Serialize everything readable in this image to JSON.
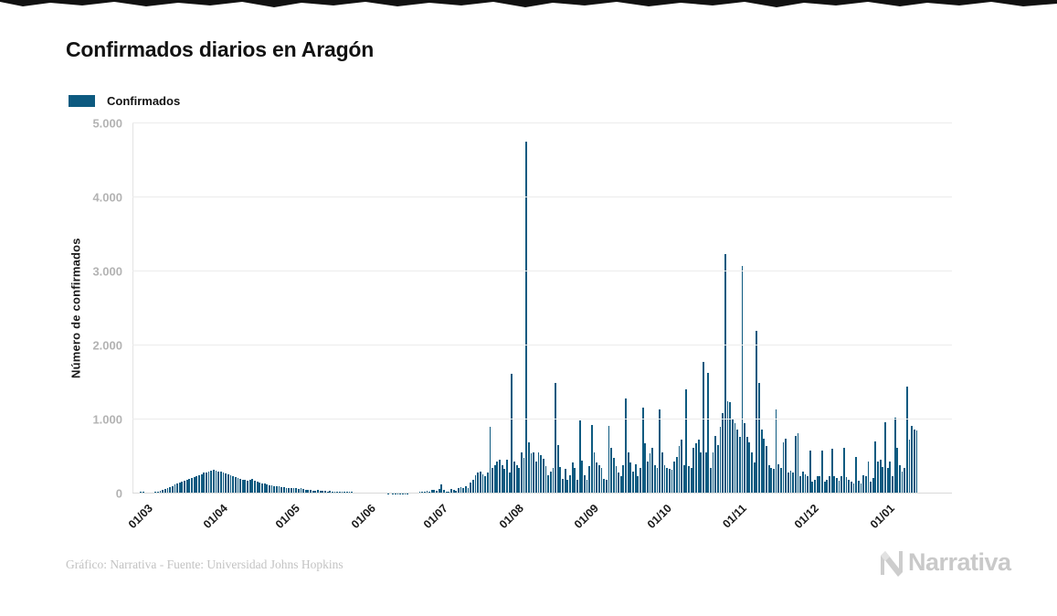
{
  "page": {
    "title": "Confirmados diarios en Aragón"
  },
  "legend": {
    "label": "Confirmados",
    "swatch_color": "#0d5a80"
  },
  "footer": {
    "credit": "Gráfico: Narrativa - Fuente: Universidad Johns Hopkins",
    "brand": "Narrativa"
  },
  "colors": {
    "bar": "#0d5a80",
    "gridline": "#ececec",
    "tick_label_gray": "#b3b3b3",
    "logo_gray": "#c9c9c9"
  },
  "chart_data": {
    "type": "bar",
    "title": "Confirmados diarios en Aragón",
    "series_name": "Confirmados",
    "xlabel": "",
    "ylabel": "Número de confirmados",
    "ylim": [
      0,
      5000
    ],
    "grid": "horizontal",
    "legend_position": "top-left",
    "bar_color": "#0d5a80",
    "y_ticks": [
      {
        "label": "0",
        "value": 0
      },
      {
        "label": "1.000",
        "value": 1000
      },
      {
        "label": "2.000",
        "value": 2000
      },
      {
        "label": "3.000",
        "value": 3000
      },
      {
        "label": "4.000",
        "value": 4000
      },
      {
        "label": "5.000",
        "value": 5000
      }
    ],
    "x_ticks": [
      {
        "label": "01/03",
        "day": 5
      },
      {
        "label": "01/04",
        "day": 36
      },
      {
        "label": "01/05",
        "day": 66
      },
      {
        "label": "01/06",
        "day": 97
      },
      {
        "label": "01/07",
        "day": 127
      },
      {
        "label": "01/08",
        "day": 158
      },
      {
        "label": "01/09",
        "day": 189
      },
      {
        "label": "01/10",
        "day": 219
      },
      {
        "label": "01/11",
        "day": 250
      },
      {
        "label": "01/12",
        "day": 280
      },
      {
        "label": "01/01",
        "day": 311
      }
    ],
    "total_slots": 338,
    "values": [
      10,
      18,
      12,
      22,
      28,
      8,
      10,
      14,
      18,
      25,
      30,
      40,
      50,
      60,
      75,
      90,
      105,
      120,
      135,
      150,
      160,
      175,
      185,
      200,
      210,
      225,
      240,
      250,
      265,
      280,
      290,
      300,
      310,
      320,
      310,
      295,
      300,
      285,
      270,
      260,
      245,
      235,
      220,
      210,
      200,
      190,
      180,
      170,
      185,
      195,
      175,
      160,
      150,
      140,
      130,
      120,
      115,
      110,
      105,
      100,
      95,
      90,
      85,
      80,
      75,
      70,
      80,
      72,
      65,
      75,
      60,
      55,
      50,
      46,
      42,
      40,
      44,
      38,
      35,
      33,
      30,
      32,
      28,
      26,
      25,
      27,
      24,
      22,
      20,
      22,
      19,
      18,
      16,
      15,
      16,
      14,
      12,
      10,
      12,
      9,
      8,
      10,
      14,
      9,
      7,
      5,
      8,
      6,
      4,
      3,
      5,
      4,
      6,
      4,
      8,
      10,
      12,
      16,
      20,
      28,
      24,
      35,
      30,
      45,
      55,
      40,
      60,
      120,
      45,
      30,
      25,
      60,
      50,
      40,
      70,
      90,
      80,
      100,
      80,
      150,
      180,
      250,
      280,
      300,
      260,
      230,
      280,
      900,
      350,
      380,
      430,
      460,
      380,
      330,
      460,
      280,
      1620,
      430,
      380,
      340,
      560,
      480,
      4750,
      690,
      540,
      560,
      430,
      550,
      520,
      470,
      370,
      250,
      300,
      350,
      1490,
      650,
      360,
      200,
      330,
      180,
      250,
      420,
      350,
      180,
      990,
      450,
      250,
      180,
      370,
      930,
      560,
      420,
      380,
      340,
      200,
      180,
      910,
      620,
      480,
      370,
      280,
      230,
      380,
      1280,
      560,
      420,
      300,
      390,
      230,
      340,
      1160,
      680,
      430,
      540,
      620,
      380,
      350,
      1130,
      550,
      380,
      350,
      330,
      320,
      430,
      500,
      640,
      730,
      380,
      1410,
      370,
      350,
      620,
      680,
      730,
      550,
      1780,
      550,
      1630,
      350,
      560,
      780,
      650,
      900,
      1090,
      3230,
      1250,
      1230,
      1010,
      950,
      870,
      760,
      3070,
      950,
      760,
      690,
      550,
      420,
      2200,
      1500,
      870,
      740,
      640,
      380,
      350,
      330,
      1140,
      390,
      340,
      690,
      740,
      290,
      310,
      280,
      780,
      815,
      240,
      300,
      260,
      230,
      580,
      160,
      180,
      230,
      230,
      580,
      160,
      180,
      230,
      600,
      230,
      215,
      170,
      230,
      620,
      220,
      190,
      160,
      140,
      490,
      175,
      140,
      250,
      230,
      430,
      160,
      210,
      700,
      430,
      460,
      360,
      960,
      340,
      430,
      230,
      1020,
      620,
      380,
      300,
      350,
      1450,
      730,
      910,
      870,
      850,
      0,
      0,
      0,
      0,
      0,
      0,
      0,
      0,
      0,
      0,
      0,
      0,
      0,
      0
    ]
  }
}
